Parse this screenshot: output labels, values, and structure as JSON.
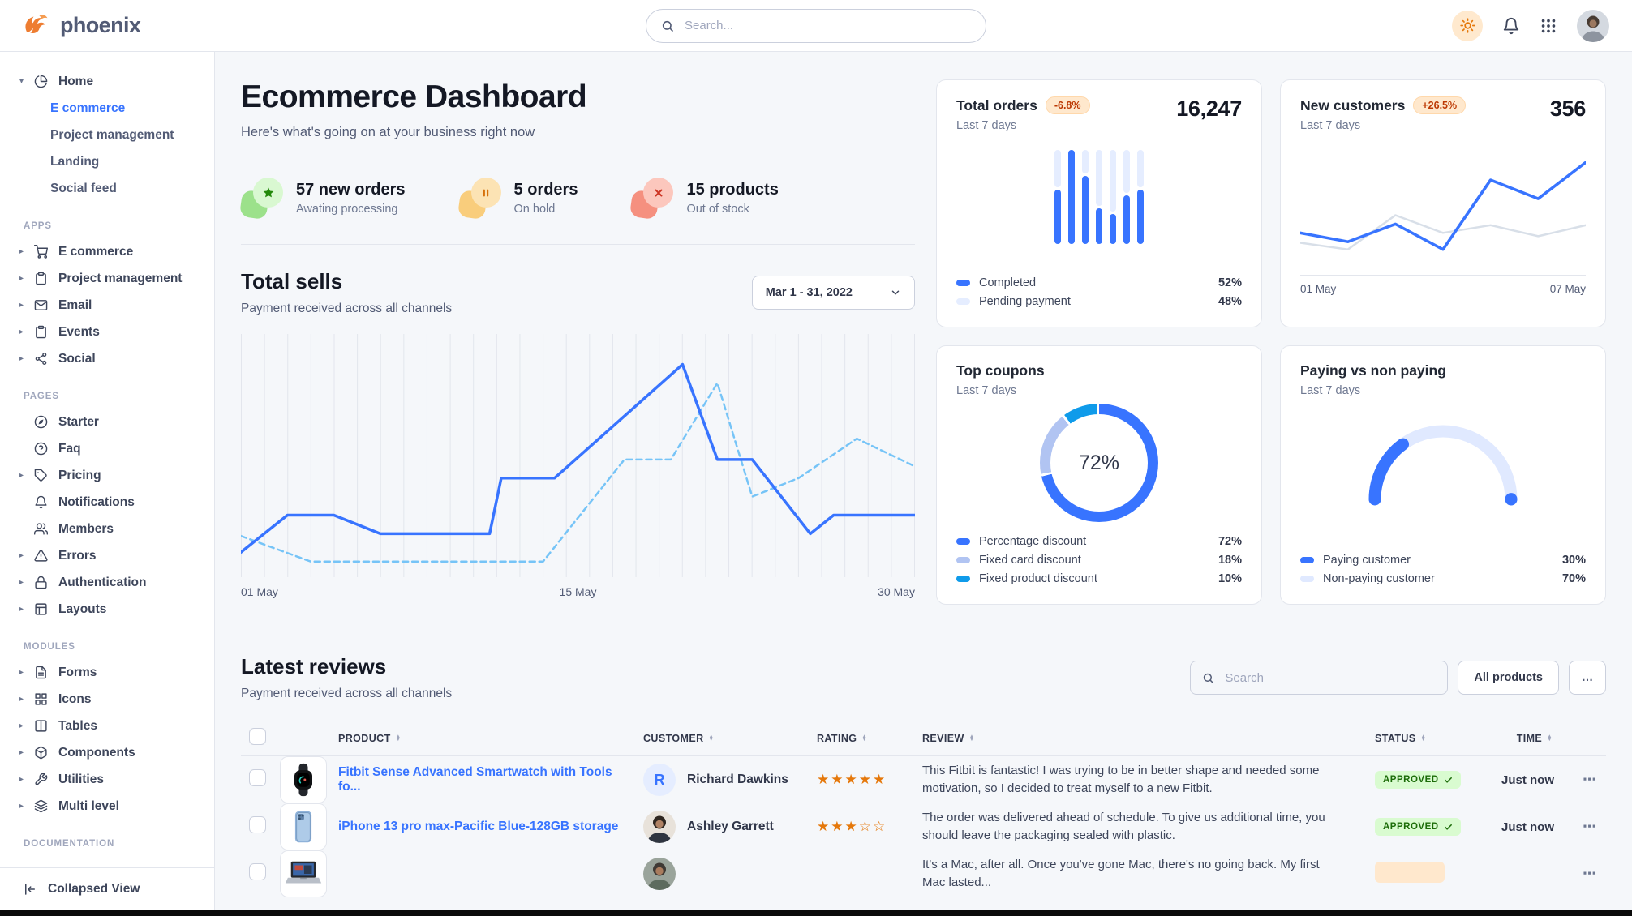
{
  "brand": {
    "name": "phoenix"
  },
  "topbar": {
    "search_placeholder": "Search..."
  },
  "theme": {
    "primary": "#3874ff",
    "warning_text": "#bc3803",
    "success_text": "#1c6c09",
    "star": "#e5780b"
  },
  "sidebar": {
    "home": {
      "label": "Home",
      "icon": "pie-chart",
      "children": [
        {
          "label": "E commerce",
          "active": true
        },
        {
          "label": "Project management",
          "active": false
        },
        {
          "label": "Landing",
          "active": false
        },
        {
          "label": "Social feed",
          "active": false
        }
      ]
    },
    "sections": [
      {
        "label": "APPS",
        "items": [
          {
            "label": "E commerce",
            "icon": "shopping-cart",
            "chevron": true
          },
          {
            "label": "Project management",
            "icon": "clipboard",
            "chevron": true
          },
          {
            "label": "Email",
            "icon": "mail",
            "chevron": true
          },
          {
            "label": "Events",
            "icon": "clipboard",
            "chevron": true
          },
          {
            "label": "Social",
            "icon": "share",
            "chevron": true
          }
        ]
      },
      {
        "label": "PAGES",
        "items": [
          {
            "label": "Starter",
            "icon": "compass",
            "chevron": false
          },
          {
            "label": "Faq",
            "icon": "help-circle",
            "chevron": false
          },
          {
            "label": "Pricing",
            "icon": "tag",
            "chevron": true
          },
          {
            "label": "Notifications",
            "icon": "bell",
            "chevron": false
          },
          {
            "label": "Members",
            "icon": "users",
            "chevron": false
          },
          {
            "label": "Errors",
            "icon": "alert-triangle",
            "chevron": true
          },
          {
            "label": "Authentication",
            "icon": "lock",
            "chevron": true
          },
          {
            "label": "Layouts",
            "icon": "layout",
            "chevron": true
          }
        ]
      },
      {
        "label": "MODULES",
        "items": [
          {
            "label": "Forms",
            "icon": "file-text",
            "chevron": true
          },
          {
            "label": "Icons",
            "icon": "grid",
            "chevron": true
          },
          {
            "label": "Tables",
            "icon": "columns",
            "chevron": true
          },
          {
            "label": "Components",
            "icon": "package",
            "chevron": true
          },
          {
            "label": "Utilities",
            "icon": "tool",
            "chevron": true
          },
          {
            "label": "Multi level",
            "icon": "layers",
            "chevron": true
          }
        ]
      },
      {
        "label": "DOCUMENTATION",
        "items": []
      }
    ],
    "collapse_label": "Collapsed View"
  },
  "header": {
    "title": "Ecommerce Dashboard",
    "subtitle": "Here's what's going on at your business right now"
  },
  "stats": [
    {
      "value_label": "57 new orders",
      "sub": "Awating processing",
      "icon": "star",
      "blob_color": "#9ce18b",
      "circle_color": "#d9f8d1",
      "icon_color": "#23890b"
    },
    {
      "value_label": "5 orders",
      "sub": "On hold",
      "icon": "pause",
      "blob_color": "#f9cd7c",
      "circle_color": "#fce3b4",
      "icon_color": "#d6700a"
    },
    {
      "value_label": "15 products",
      "sub": "Out of stock",
      "icon": "x",
      "blob_color": "#f5907f",
      "circle_color": "#fcc7bd",
      "icon_color": "#cc3423"
    }
  ],
  "total_sells": {
    "title": "Total sells",
    "subtitle": "Payment received across all channels",
    "date_range": "Mar 1 - 31, 2022",
    "x_labels": [
      "01 May",
      "15 May",
      "30 May"
    ]
  },
  "cards": {
    "total_orders": {
      "title": "Total orders",
      "badge": "-6.8%",
      "period": "Last 7 days",
      "value": "16,247",
      "legend": [
        {
          "label": "Completed",
          "value": "52%",
          "color": "#3874ff"
        },
        {
          "label": "Pending payment",
          "value": "48%",
          "color": "#e5edff"
        }
      ]
    },
    "new_customers": {
      "title": "New customers",
      "badge": "+26.5%",
      "period": "Last 7 days",
      "value": "356",
      "x_labels": [
        "01 May",
        "07 May"
      ]
    },
    "top_coupons": {
      "title": "Top coupons",
      "period": "Last 7 days",
      "legend": [
        {
          "label": "Percentage discount",
          "value": "72%",
          "color": "#3874ff"
        },
        {
          "label": "Fixed card discount",
          "value": "18%",
          "color": "#b1c4f2"
        },
        {
          "label": "Fixed product discount",
          "value": "10%",
          "color": "#0f9bea"
        }
      ]
    },
    "paying": {
      "title": "Paying vs non paying",
      "period": "Last 7 days",
      "legend": [
        {
          "label": "Paying customer",
          "value": "30%",
          "color": "#3874ff"
        },
        {
          "label": "Non-paying customer",
          "value": "70%",
          "color": "#e0e9ff"
        }
      ]
    }
  },
  "reviews": {
    "title": "Latest reviews",
    "subtitle": "Payment received across all channels",
    "search_placeholder": "Search",
    "filter_button": "All products",
    "more_button": "...",
    "columns": [
      "PRODUCT",
      "CUSTOMER",
      "RATING",
      "REVIEW",
      "STATUS",
      "TIME"
    ],
    "rows": [
      {
        "product": "Fitbit Sense Advanced Smartwatch with Tools fo...",
        "product_image": "smartwatch",
        "customer": "Richard Dawkins",
        "avatar_type": "initial",
        "avatar_initial": "R",
        "rating": 5,
        "review": "This Fitbit is fantastic! I was trying to be in better shape and needed some motivation, so I decided to treat myself to a new Fitbit.",
        "status": "APPROVED",
        "time": "Just now",
        "partial": false
      },
      {
        "product": "iPhone 13 pro max-Pacific Blue-128GB storage",
        "product_image": "phone",
        "customer": "Ashley Garrett",
        "avatar_type": "photo",
        "avatar_initial": "A",
        "rating": 3,
        "review": "The order was delivered ahead of schedule. To give us additional time, you should leave the packaging sealed with plastic.",
        "status": "APPROVED",
        "time": "Just now",
        "partial": false
      },
      {
        "product": "",
        "product_image": "laptop",
        "customer": "",
        "avatar_type": "photo",
        "avatar_initial": "",
        "rating": 0,
        "review": "It's a Mac, after all. Once you've gone Mac, there's no going back. My first Mac lasted...",
        "status": "",
        "time": "",
        "partial": true
      }
    ]
  },
  "chart_data": [
    {
      "id": "total_sells",
      "type": "line",
      "title": "Total sells",
      "x_range": [
        1,
        30
      ],
      "ylim": [
        0,
        100
      ],
      "grid": "vertical",
      "gridlines": 30,
      "x_tick_labels": [
        "01 May",
        "15 May",
        "30 May"
      ],
      "series": [
        {
          "name": "current",
          "style": "solid",
          "color": "#3874ff",
          "points": [
            [
              1,
              9
            ],
            [
              3,
              25
            ],
            [
              5,
              25
            ],
            [
              7,
              17
            ],
            [
              11.7,
              17
            ],
            [
              12.2,
              41
            ],
            [
              14.5,
              41
            ],
            [
              20,
              90
            ],
            [
              21.5,
              49
            ],
            [
              23,
              49
            ],
            [
              25.5,
              17
            ],
            [
              26.5,
              25
            ],
            [
              30,
              25
            ]
          ]
        },
        {
          "name": "previous",
          "style": "dashed",
          "color": "#76c4f7",
          "points": [
            [
              1,
              16
            ],
            [
              4,
              5
            ],
            [
              14,
              5
            ],
            [
              17.5,
              49
            ],
            [
              19.5,
              49
            ],
            [
              21.5,
              82
            ],
            [
              23,
              33
            ],
            [
              25,
              41
            ],
            [
              27.5,
              58
            ],
            [
              30,
              46
            ]
          ]
        }
      ]
    },
    {
      "id": "total_orders",
      "type": "bar",
      "title": "Total orders (last 7 days)",
      "categories": [
        "1",
        "2",
        "3",
        "4",
        "5",
        "6",
        "7"
      ],
      "series": [
        {
          "name": "Completed",
          "color": "#3874ff",
          "values": [
            58,
            100,
            72,
            38,
            32,
            52,
            58
          ]
        },
        {
          "name": "Pending payment",
          "color": "#e5edff",
          "values": [
            42,
            0,
            28,
            62,
            68,
            48,
            42
          ]
        }
      ],
      "stacked": true,
      "ylim": [
        0,
        100
      ]
    },
    {
      "id": "new_customers",
      "type": "line",
      "title": "New customers (last 7 days)",
      "x_labels": [
        "01 May",
        "",
        "",
        "",
        "",
        "",
        "07 May"
      ],
      "ylim": [
        0,
        100
      ],
      "series": [
        {
          "name": "previous",
          "style": "solid",
          "color": "#d8dfe8",
          "values": [
            18,
            12,
            43,
            27,
            34,
            24,
            34
          ]
        },
        {
          "name": "current",
          "style": "solid",
          "color": "#3874ff",
          "values": [
            27,
            19,
            35,
            12,
            75,
            58,
            91
          ]
        }
      ]
    },
    {
      "id": "top_coupons",
      "type": "pie",
      "title": "Top coupons (last 7 days)",
      "center_label": "72%",
      "slices": [
        {
          "label": "Percentage discount",
          "value": 72,
          "color": "#3874ff"
        },
        {
          "label": "Fixed card discount",
          "value": 18,
          "color": "#b1c4f2"
        },
        {
          "label": "Fixed product discount",
          "value": 10,
          "color": "#0f9bea"
        }
      ]
    },
    {
      "id": "paying_gauge",
      "type": "pie",
      "title": "Paying vs non paying (last 7 days)",
      "shape": "half-donut",
      "slices": [
        {
          "label": "Paying customer",
          "value": 30,
          "color": "#3874ff"
        },
        {
          "label": "Non-paying customer",
          "value": 70,
          "color": "#e0e9ff"
        }
      ]
    }
  ]
}
